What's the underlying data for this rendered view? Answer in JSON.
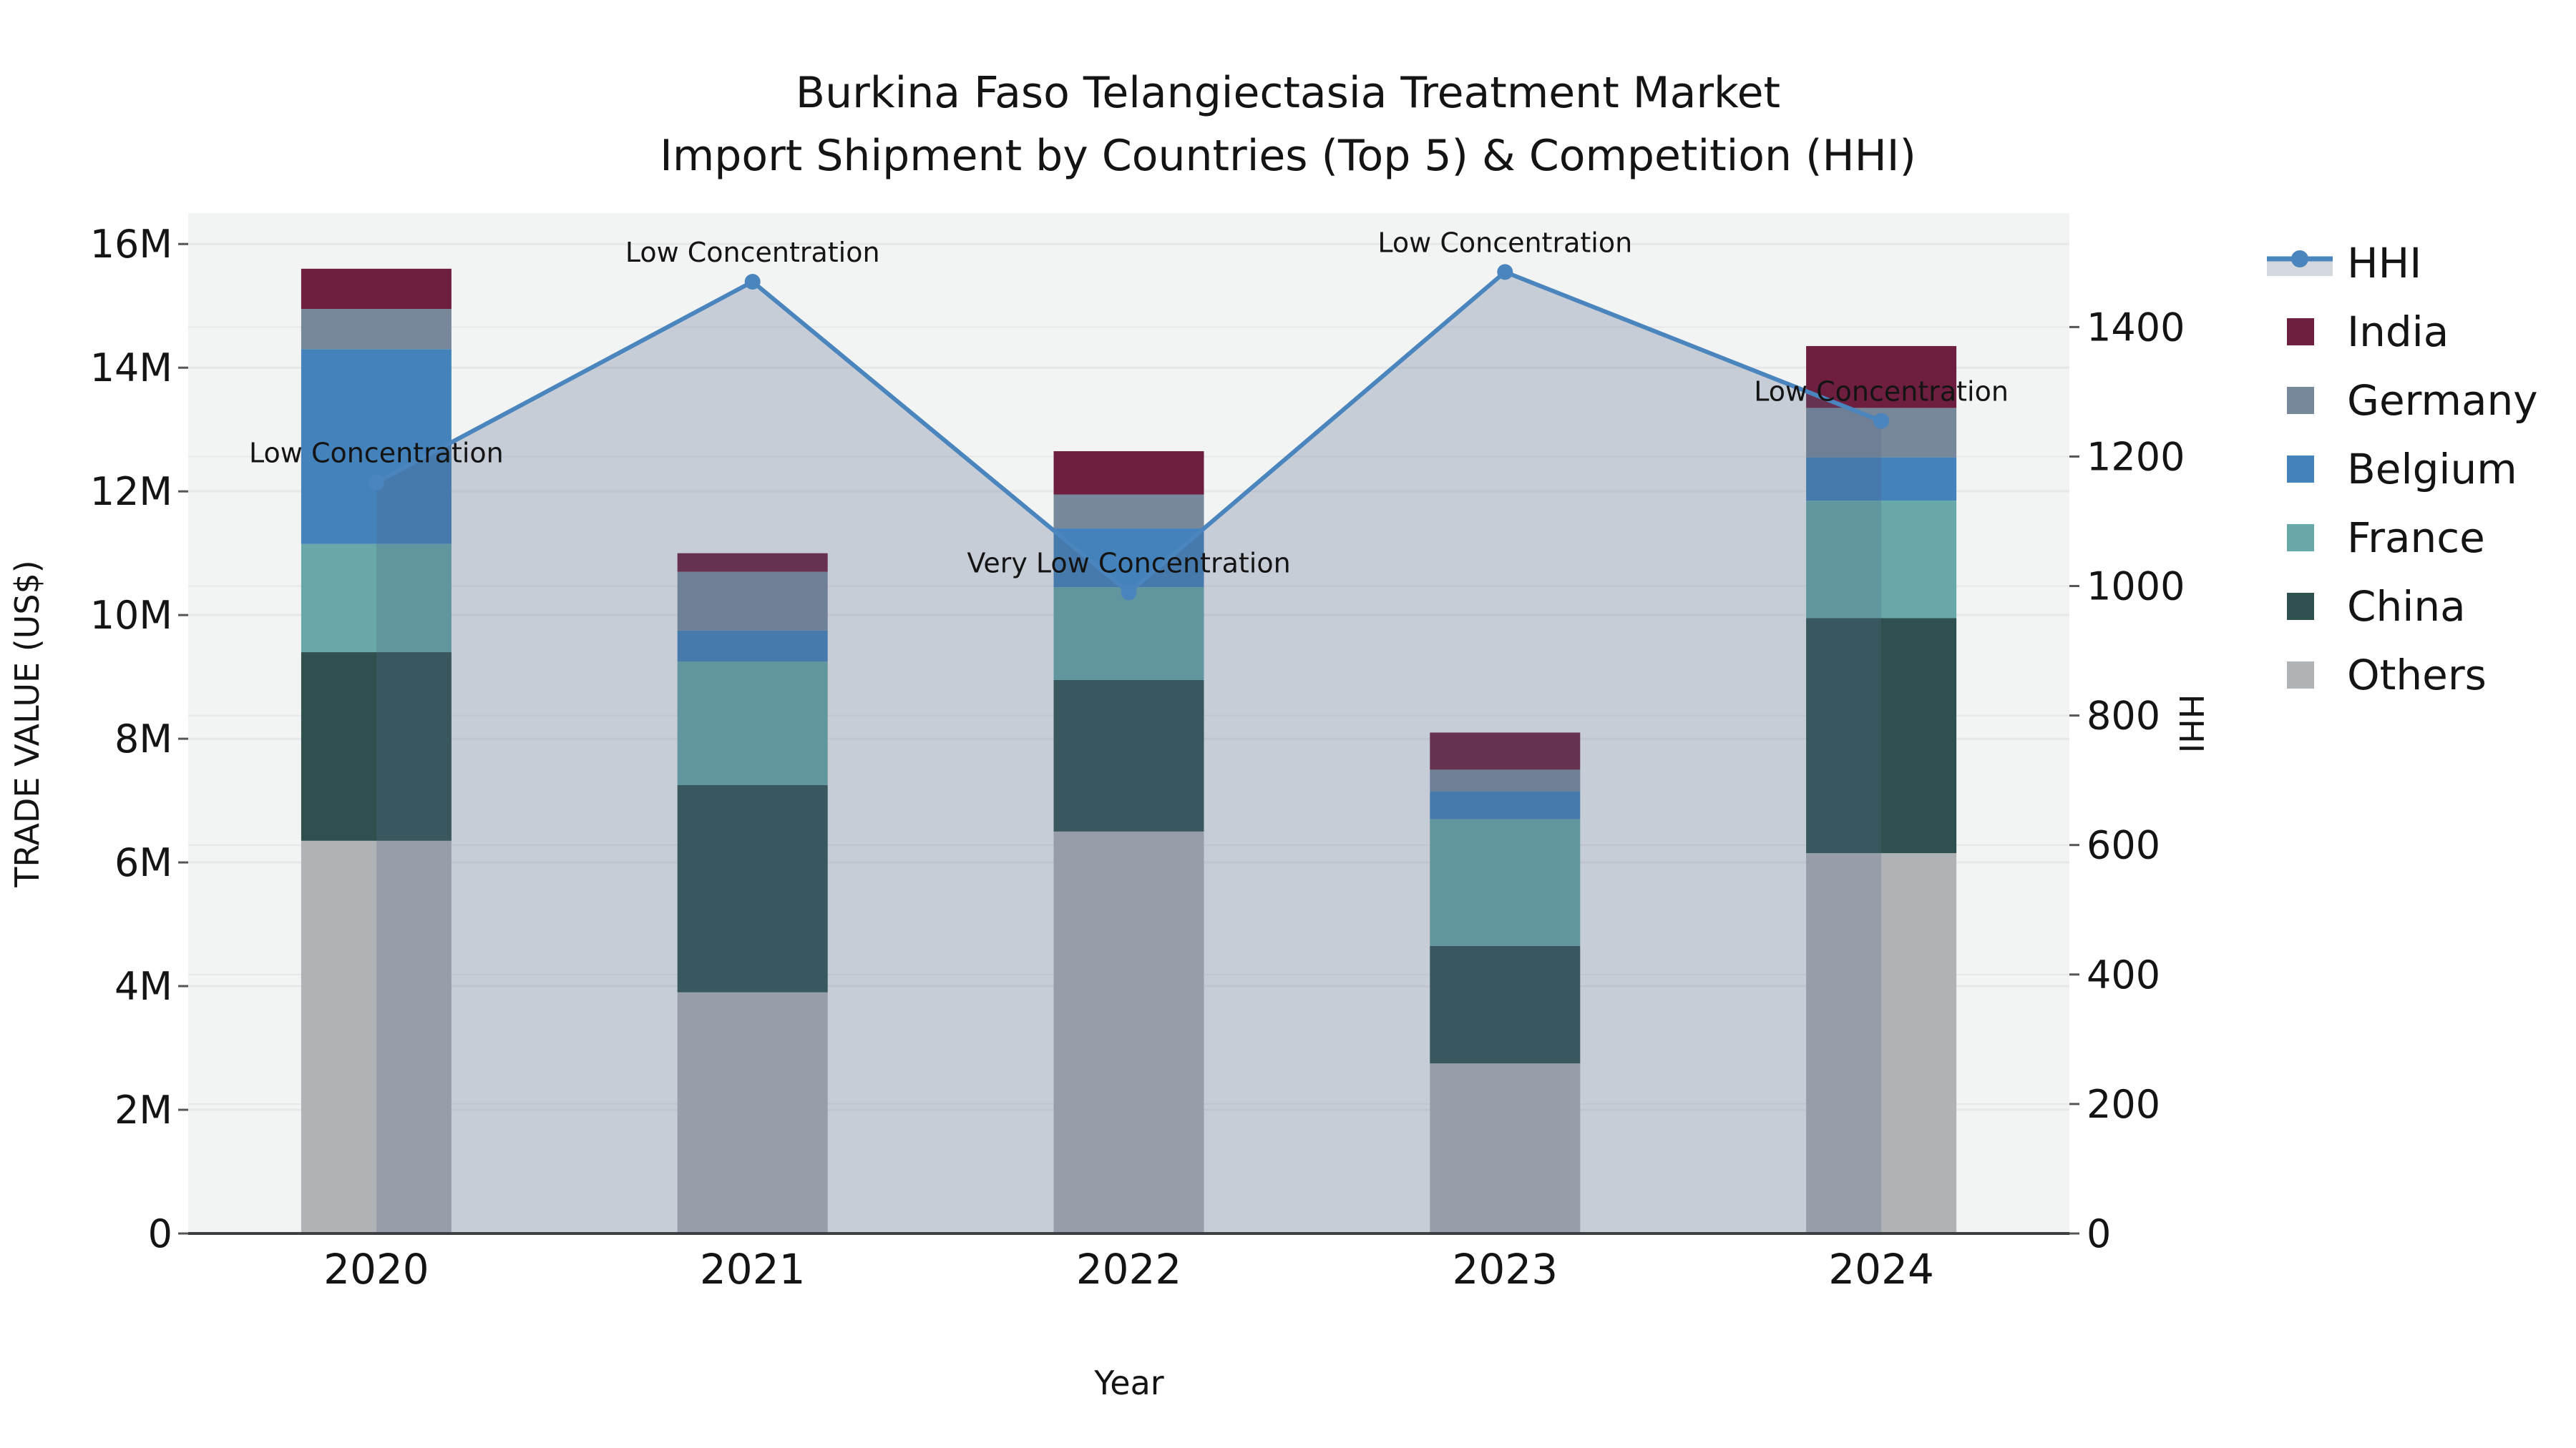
{
  "chart_data": {
    "type": "combo_stacked_bar_line",
    "title_line1": "Burkina Faso Telangiectasia Treatment Market",
    "title_line2": "Import Shipment by Countries (Top 5) & Competition (HHI)",
    "x_label": "Year",
    "categories": [
      "2020",
      "2021",
      "2022",
      "2023",
      "2024"
    ],
    "y_left": {
      "label": "TRADE VALUE (US$)",
      "unit": "million US$",
      "tick_values": [
        0,
        2,
        4,
        6,
        8,
        10,
        12,
        14,
        16
      ],
      "tick_labels": [
        "0",
        "2M",
        "4M",
        "6M",
        "8M",
        "10M",
        "12M",
        "14M",
        "16M"
      ],
      "max": 16.5
    },
    "y_right": {
      "label": "HHI",
      "tick_values": [
        0,
        200,
        400,
        600,
        800,
        1000,
        1200,
        1400
      ],
      "tick_labels": [
        "0",
        "200",
        "400",
        "600",
        "800",
        "1000",
        "1200",
        "1400"
      ],
      "max": 1576
    },
    "series": [
      {
        "name": "India",
        "color": "#6e1e3e",
        "values_musd": [
          0.65,
          0.3,
          0.7,
          0.6,
          1.0
        ]
      },
      {
        "name": "Germany",
        "color": "#78889b",
        "values_musd": [
          0.65,
          0.95,
          0.55,
          0.35,
          0.8
        ]
      },
      {
        "name": "Belgium",
        "color": "#4382ba",
        "values_musd": [
          3.15,
          0.5,
          0.95,
          0.45,
          0.7
        ]
      },
      {
        "name": "France",
        "color": "#68a8a8",
        "values_musd": [
          1.75,
          2.0,
          1.5,
          2.05,
          1.9
        ]
      },
      {
        "name": "China",
        "color": "#2e514f",
        "values_musd": [
          3.05,
          3.35,
          2.45,
          1.9,
          3.8
        ]
      },
      {
        "name": "Others",
        "color": "#b0b3b5",
        "values_musd": [
          6.35,
          3.9,
          6.5,
          2.75,
          6.15
        ]
      }
    ],
    "stack_order_bottom_to_top": [
      "Others",
      "China",
      "France",
      "Belgium",
      "Germany",
      "India"
    ],
    "totals_musd": [
      15.6,
      11.0,
      12.65,
      8.1,
      14.35
    ],
    "hhi_line": {
      "name": "HHI",
      "values": [
        1160,
        1470,
        990,
        1485,
        1255
      ],
      "annotations": [
        "Low Concentration",
        "Low Concentration",
        "Very Low Concentration",
        "Low Concentration",
        "Low Concentration"
      ]
    },
    "legend_entries": [
      "HHI",
      "India",
      "Germany",
      "Belgium",
      "France",
      "China",
      "Others"
    ],
    "colors": {
      "hhi_line": "#4a85bd",
      "hhi_area": "rgba(85,105,135,0.27)",
      "legend_band": "#d3d7de",
      "plot_background": "#f2f3f3",
      "gridline": "#e6e7e9",
      "axis_spine": "#3d4043",
      "tick_mark": "#555555",
      "text": "#141414"
    },
    "layout_hints": {
      "legend_position": "right-top",
      "grid": "horizontal-both-axes",
      "bar_two_tone_note": "HHI area overlay tints bars between 2020 and 2024 data-point centers"
    }
  }
}
